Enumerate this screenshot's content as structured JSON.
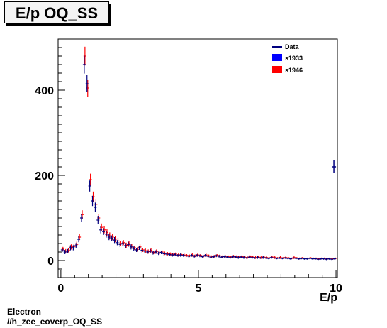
{
  "title": "E/p OQ_SS",
  "footer": {
    "line1": "Electron",
    "line2": "//h_zee_eoverp_OQ_SS"
  },
  "colors": {
    "data": "#00007f",
    "s1933": "#0000ff",
    "s1946": "#ff0000"
  },
  "chart_data": {
    "type": "scatter",
    "xlabel": "E/p",
    "ylabel": "",
    "xlim": [
      -0.1,
      10.05
    ],
    "ylim": [
      -40,
      520
    ],
    "xticks": [
      0,
      5,
      10
    ],
    "yticks": [
      0,
      200,
      400
    ],
    "legend": [
      {
        "name": "Data",
        "style": "line"
      },
      {
        "name": "s1933",
        "style": "box"
      },
      {
        "name": "s1946",
        "style": "box"
      }
    ],
    "legend_position": "top-right",
    "series": [
      {
        "name": "Data",
        "x": [
          0.05,
          0.15,
          0.25,
          0.35,
          0.45,
          0.55,
          0.65,
          0.75,
          0.85,
          0.95,
          1.05,
          1.15,
          1.25,
          1.35,
          1.45,
          1.55,
          1.65,
          1.75,
          1.85,
          1.95,
          2.05,
          2.15,
          2.25,
          2.35,
          2.45,
          2.55,
          2.65,
          2.75,
          2.85,
          2.95,
          3.05,
          3.15,
          3.25,
          3.35,
          3.45,
          3.55,
          3.65,
          3.75,
          3.85,
          3.95,
          4.05,
          4.15,
          4.25,
          4.35,
          4.45,
          4.55,
          4.65,
          4.75,
          4.85,
          4.95,
          5.05,
          5.15,
          5.25,
          5.35,
          5.45,
          5.55,
          5.65,
          5.75,
          5.85,
          5.95,
          6.05,
          6.15,
          6.25,
          6.35,
          6.45,
          6.55,
          6.65,
          6.75,
          6.85,
          6.95,
          7.05,
          7.15,
          7.25,
          7.35,
          7.45,
          7.55,
          7.65,
          7.75,
          7.85,
          7.95,
          8.05,
          8.15,
          8.25,
          8.35,
          8.45,
          8.55,
          8.65,
          8.75,
          8.85,
          8.95,
          9.05,
          9.15,
          9.25,
          9.35,
          9.45,
          9.55,
          9.65,
          9.75,
          9.85,
          9.95
        ],
        "y": [
          25,
          20,
          22,
          30,
          30,
          35,
          50,
          100,
          460,
          415,
          175,
          140,
          125,
          95,
          72,
          68,
          62,
          55,
          52,
          48,
          42,
          38,
          40,
          35,
          38,
          32,
          28,
          25,
          30,
          24,
          22,
          20,
          22,
          18,
          20,
          17,
          19,
          16,
          15,
          14,
          13,
          14,
          12,
          13,
          12,
          11,
          10,
          12,
          10,
          12,
          11,
          9,
          12,
          10,
          8,
          9,
          11,
          10,
          8,
          9,
          8,
          7,
          9,
          8,
          7,
          8,
          7,
          6,
          8,
          7,
          6,
          7,
          6,
          7,
          6,
          5,
          7,
          6,
          5,
          6,
          5,
          6,
          5,
          4,
          6,
          5,
          4,
          5,
          4,
          4,
          5,
          4,
          4,
          3,
          4,
          4,
          3,
          4,
          3,
          4
        ],
        "err": [
          5,
          5,
          5,
          6,
          6,
          6,
          7,
          10,
          21,
          20,
          13,
          12,
          11,
          10,
          8,
          8,
          8,
          7,
          7,
          7,
          6,
          6,
          6,
          6,
          6,
          6,
          5,
          5,
          5,
          5,
          5,
          4,
          5,
          4,
          4,
          4,
          4,
          4,
          4,
          4,
          4,
          4,
          3,
          4,
          3,
          3,
          3,
          3,
          3,
          3,
          3,
          3,
          3,
          3,
          3,
          3,
          3,
          3,
          3,
          3,
          3,
          3,
          3,
          3,
          3,
          3,
          3,
          2,
          3,
          3,
          2,
          3,
          2,
          3,
          2,
          2,
          3,
          2,
          2,
          2,
          2,
          2,
          2,
          2,
          2,
          2,
          2,
          2,
          2,
          2,
          2,
          2,
          2,
          2,
          2,
          2,
          2,
          2,
          2,
          2
        ]
      },
      {
        "name": "s1946",
        "x": [
          0.05,
          0.15,
          0.25,
          0.35,
          0.45,
          0.55,
          0.65,
          0.75,
          0.85,
          0.95,
          1.05,
          1.15,
          1.25,
          1.35,
          1.45,
          1.55,
          1.65,
          1.75,
          1.85,
          1.95,
          2.05,
          2.15,
          2.25,
          2.35,
          2.45,
          2.55,
          2.65,
          2.75,
          2.85,
          2.95,
          3.05,
          3.15,
          3.25,
          3.35,
          3.45,
          3.55,
          3.65,
          3.75,
          3.85,
          3.95,
          4.05,
          4.15,
          4.25,
          4.35,
          4.45,
          4.55,
          4.65,
          4.75,
          4.85,
          4.95,
          5.05,
          5.15,
          5.25,
          5.35,
          5.45,
          5.55,
          5.65,
          5.75,
          5.85,
          5.95,
          6.05,
          6.15,
          6.25,
          6.35,
          6.45,
          6.55,
          6.65,
          6.75,
          6.85,
          6.95,
          7.05,
          7.15,
          7.25,
          7.35,
          7.45,
          7.55,
          7.65,
          7.75,
          7.85,
          7.95,
          8.05,
          8.15,
          8.25,
          8.35,
          8.45,
          8.55,
          8.65,
          8.75,
          8.85,
          8.95,
          9.05,
          9.15,
          9.25,
          9.35,
          9.45,
          9.55,
          9.65,
          9.75,
          9.85,
          9.95
        ],
        "y": [
          27,
          22,
          24,
          32,
          33,
          38,
          55,
          108,
          480,
          405,
          190,
          150,
          132,
          100,
          78,
          72,
          66,
          58,
          55,
          50,
          46,
          40,
          42,
          36,
          40,
          34,
          30,
          26,
          32,
          25,
          23,
          21,
          24,
          19,
          21,
          18,
          20,
          17,
          16,
          15,
          14,
          15,
          13,
          14,
          13,
          12,
          11,
          13,
          11,
          13,
          12,
          10,
          13,
          11,
          9,
          10,
          12,
          11,
          9,
          10,
          9,
          8,
          10,
          9,
          8,
          9,
          8,
          7,
          9,
          8,
          7,
          8,
          7,
          8,
          7,
          6,
          8,
          7,
          6,
          7,
          6,
          7,
          6,
          5,
          7,
          6,
          5,
          6,
          5,
          5,
          6,
          5,
          5,
          4,
          5,
          5,
          4,
          5,
          4,
          5
        ],
        "err": [
          5,
          5,
          5,
          6,
          6,
          6,
          7,
          10,
          22,
          20,
          14,
          12,
          11,
          10,
          9,
          8,
          8,
          8,
          7,
          7,
          7,
          6,
          6,
          6,
          6,
          6,
          5,
          5,
          6,
          5,
          5,
          5,
          5,
          4,
          5,
          4,
          4,
          4,
          4,
          4,
          4,
          4,
          4,
          4,
          4,
          3,
          3,
          4,
          3,
          4,
          3,
          3,
          4,
          3,
          3,
          3,
          3,
          3,
          3,
          3,
          3,
          3,
          3,
          3,
          3,
          3,
          3,
          3,
          3,
          3,
          3,
          3,
          3,
          3,
          3,
          2,
          3,
          3,
          2,
          3,
          2,
          3,
          2,
          2,
          3,
          2,
          2,
          2,
          2,
          2,
          2,
          2,
          2,
          2,
          2,
          2,
          2,
          2,
          2,
          2
        ]
      }
    ],
    "overflow_point": {
      "x": 10.0,
      "y": 220,
      "err": 15
    }
  }
}
